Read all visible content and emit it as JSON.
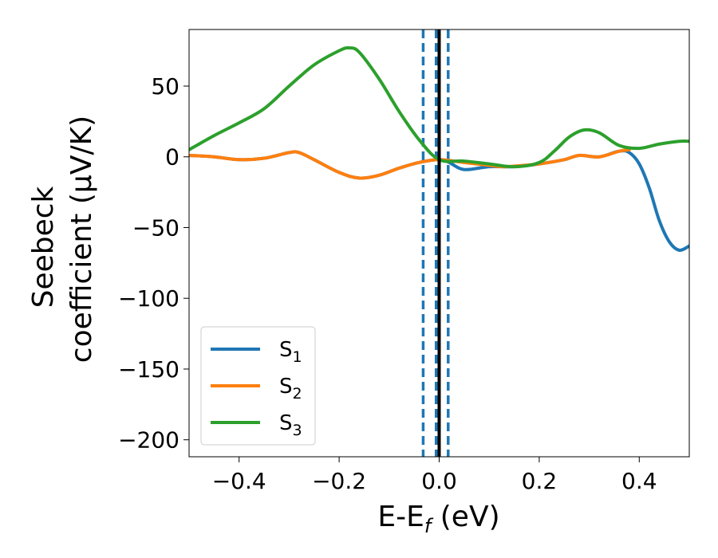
{
  "chart_data": {
    "type": "line",
    "xlabel": "E-E",
    "xlabel_sub": "f",
    "xlabel_unit": " (eV)",
    "ylabel_line1": "Seebeck",
    "ylabel_line2": "coefficient  (μV/K)",
    "xlim": [
      -0.5,
      0.5
    ],
    "ylim": [
      -212,
      90
    ],
    "xticks": [
      -0.4,
      -0.2,
      0.0,
      0.2,
      0.4
    ],
    "xtick_labels": [
      "−0.4",
      "−0.2",
      "0.0",
      "0.2",
      "0.4"
    ],
    "yticks": [
      50,
      0,
      -50,
      -100,
      -150,
      -200
    ],
    "ytick_labels": [
      "50",
      "0",
      "−50",
      "−100",
      "−150",
      "−200"
    ],
    "grid": false,
    "legend_position": "lower-left",
    "vertical_lines": [
      {
        "x": -0.032,
        "style": "dashed",
        "color": "#1f77b4"
      },
      {
        "x": -0.006,
        "style": "dashed",
        "color": "#1f77b4"
      },
      {
        "x": 0.0,
        "style": "solid",
        "color": "#000000"
      },
      {
        "x": 0.018,
        "style": "dashed",
        "color": "#1f77b4"
      }
    ],
    "series": [
      {
        "name": "S",
        "sub": "1",
        "color": "#1f77b4",
        "points": [
          [
            -0.5,
            1
          ],
          [
            -0.45,
            0
          ],
          [
            -0.4,
            -2
          ],
          [
            -0.35,
            -1
          ],
          [
            -0.3,
            3
          ],
          [
            -0.28,
            3
          ],
          [
            -0.25,
            -2
          ],
          [
            -0.2,
            -11
          ],
          [
            -0.16,
            -15
          ],
          [
            -0.12,
            -13
          ],
          [
            -0.08,
            -8
          ],
          [
            -0.04,
            -4
          ],
          [
            0.0,
            -2
          ],
          [
            0.02,
            -4
          ],
          [
            0.05,
            -9
          ],
          [
            0.1,
            -7
          ],
          [
            0.15,
            -7
          ],
          [
            0.2,
            -5
          ],
          [
            0.25,
            -2
          ],
          [
            0.28,
            1
          ],
          [
            0.32,
            0
          ],
          [
            0.36,
            4
          ],
          [
            0.38,
            3
          ],
          [
            0.4,
            -5
          ],
          [
            0.42,
            -22
          ],
          [
            0.44,
            -45
          ],
          [
            0.46,
            -60
          ],
          [
            0.48,
            -66
          ],
          [
            0.5,
            -63
          ]
        ]
      },
      {
        "name": "S",
        "sub": "2",
        "color": "#ff7f0e",
        "points": [
          [
            -0.5,
            1
          ],
          [
            -0.45,
            0
          ],
          [
            -0.4,
            -2
          ],
          [
            -0.35,
            -1
          ],
          [
            -0.3,
            3
          ],
          [
            -0.28,
            3
          ],
          [
            -0.25,
            -2
          ],
          [
            -0.2,
            -11
          ],
          [
            -0.16,
            -15
          ],
          [
            -0.12,
            -13
          ],
          [
            -0.08,
            -8
          ],
          [
            -0.04,
            -4
          ],
          [
            0.0,
            -2
          ],
          [
            0.05,
            -4
          ],
          [
            0.1,
            -6
          ],
          [
            0.13,
            -7
          ],
          [
            0.17,
            -6
          ],
          [
            0.2,
            -5
          ],
          [
            0.25,
            -2
          ],
          [
            0.28,
            1
          ],
          [
            0.32,
            0
          ],
          [
            0.36,
            4
          ],
          [
            0.38,
            5
          ]
        ]
      },
      {
        "name": "S",
        "sub": "3",
        "color": "#2ca02c",
        "points": [
          [
            -0.5,
            5
          ],
          [
            -0.45,
            15
          ],
          [
            -0.4,
            24
          ],
          [
            -0.35,
            34
          ],
          [
            -0.3,
            50
          ],
          [
            -0.25,
            65
          ],
          [
            -0.2,
            75
          ],
          [
            -0.18,
            77
          ],
          [
            -0.16,
            74
          ],
          [
            -0.12,
            55
          ],
          [
            -0.08,
            32
          ],
          [
            -0.04,
            12
          ],
          [
            0.0,
            -2
          ],
          [
            0.05,
            -3
          ],
          [
            0.1,
            -5
          ],
          [
            0.15,
            -7
          ],
          [
            0.2,
            -4
          ],
          [
            0.23,
            4
          ],
          [
            0.26,
            14
          ],
          [
            0.29,
            19
          ],
          [
            0.32,
            17
          ],
          [
            0.36,
            8
          ],
          [
            0.4,
            6
          ],
          [
            0.44,
            9
          ],
          [
            0.48,
            11
          ],
          [
            0.5,
            11
          ]
        ]
      }
    ]
  }
}
